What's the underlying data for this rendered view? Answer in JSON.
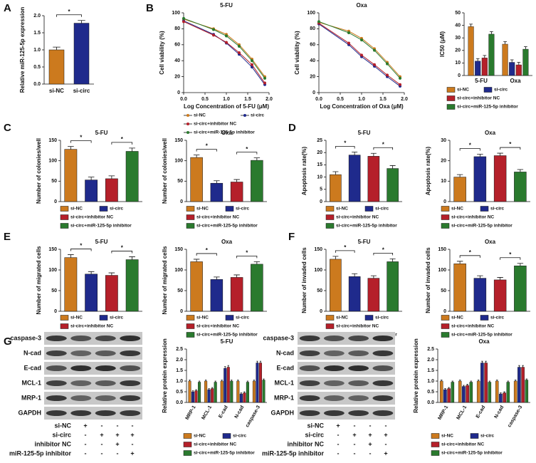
{
  "chart_data": [
    {
      "panel": "A",
      "type": "bar",
      "y_label": "Relative miR-125-5p expression",
      "categories": [
        "si-NC",
        "si-circ"
      ],
      "values": [
        1.0,
        1.78
      ],
      "errors": [
        0.08,
        0.08
      ],
      "colors": [
        "#cc7a1e",
        "#1f2a8c"
      ],
      "ylim": [
        0,
        2.0
      ],
      "yticks": [
        {
          "value": 0,
          "label": "0.0"
        },
        {
          "value": 0.5,
          "label": "0.5"
        },
        {
          "value": 1.0,
          "label": "1.0"
        },
        {
          "value": 1.5,
          "label": "1.5"
        },
        {
          "value": 2.0,
          "label": "2.0"
        }
      ],
      "significance": [
        {
          "pair": [
            0,
            1
          ],
          "label": "*"
        }
      ]
    },
    {
      "panel": "B",
      "type": "line",
      "title": "5-FU",
      "x_label": "Log Concentration of 5-FU (μM)",
      "y_label": "Cell viability (%)",
      "x": [
        0,
        0.7,
        1.0,
        1.3,
        1.6,
        1.9
      ],
      "series": [
        {
          "name": "si-NC",
          "color": "#cc7a1e",
          "values": [
            92,
            80,
            73,
            60,
            42,
            20
          ]
        },
        {
          "name": "si-circ",
          "color": "#1f2a8c",
          "values": [
            90,
            73,
            62,
            48,
            32,
            10
          ]
        },
        {
          "name": "si-circ+inhibitor NC",
          "color": "#b5202a",
          "values": [
            89,
            72,
            63,
            50,
            35,
            12
          ]
        },
        {
          "name": "si-circ+miR-125-5p inhibitor",
          "color": "#2a7a2e",
          "values": [
            93,
            79,
            71,
            58,
            40,
            18
          ]
        }
      ],
      "xlim": [
        0,
        2.0
      ],
      "xticks": [
        {
          "value": 0,
          "label": "0.0"
        },
        {
          "value": 0.5,
          "label": "0.5"
        },
        {
          "value": 1.0,
          "label": "1.0"
        },
        {
          "value": 1.5,
          "label": "1.5"
        },
        {
          "value": 2.0,
          "label": "2.0"
        }
      ],
      "ylim": [
        0,
        100
      ],
      "yticks": [
        0,
        20,
        40,
        60,
        80,
        100
      ],
      "legend": "below"
    },
    {
      "type": "line",
      "title": "Oxa",
      "x_label": "Log Concentration of Oxa (μM)",
      "y_label": "Cell viability (%)",
      "x": [
        0,
        0.7,
        1.0,
        1.3,
        1.6,
        1.9
      ],
      "series": [
        {
          "name": "si-NC",
          "color": "#cc7a1e",
          "values": [
            88,
            77,
            68,
            55,
            38,
            20
          ]
        },
        {
          "name": "si-circ",
          "color": "#1f2a8c",
          "values": [
            86,
            60,
            45,
            33,
            20,
            8
          ]
        },
        {
          "name": "si-circ+inhibitor NC",
          "color": "#b5202a",
          "values": [
            87,
            62,
            47,
            35,
            22,
            10
          ]
        },
        {
          "name": "si-circ+miR-125-5p inhibitor",
          "color": "#2a7a2e",
          "values": [
            89,
            75,
            66,
            53,
            36,
            18
          ]
        }
      ],
      "xlim": [
        0,
        2.0
      ],
      "xticks": [
        {
          "value": 0,
          "label": "0.0"
        },
        {
          "value": 0.5,
          "label": "0.5"
        },
        {
          "value": 1.0,
          "label": "1.0"
        },
        {
          "value": 1.5,
          "label": "1.5"
        },
        {
          "value": 2.0,
          "label": "2.0"
        }
      ],
      "ylim": [
        0,
        100
      ],
      "yticks": [
        0,
        20,
        40,
        60,
        80,
        100
      ]
    },
    {
      "type": "grouped_bar",
      "y_label": "IC50 (μM)",
      "categories": [
        "5-FU",
        "Oxa"
      ],
      "series": [
        {
          "name": "si-NC",
          "color": "#cc7a1e",
          "values": [
            39,
            25
          ],
          "errors": [
            2,
            2
          ]
        },
        {
          "name": "si-circ",
          "color": "#1f2a8c",
          "values": [
            11.5,
            10.5
          ],
          "errors": [
            2,
            2
          ]
        },
        {
          "name": "si-circ+inhibitor NC",
          "color": "#b5202a",
          "values": [
            14,
            8.5
          ],
          "errors": [
            2,
            2
          ]
        },
        {
          "name": "si-circ+miR-125-5p inhibitor",
          "color": "#2a7a2e",
          "values": [
            33,
            21
          ],
          "errors": [
            2,
            2
          ]
        }
      ],
      "ylim": [
        0,
        50
      ],
      "yticks": [
        0,
        10,
        20,
        30,
        40,
        50
      ],
      "legend": "below"
    },
    {
      "panel": "C",
      "type": "bar",
      "title": "5-FU",
      "y_label": "Number of colonies/well",
      "categories": [
        "si-NC",
        "si-circ",
        "si-circ+inhibitor NC",
        "si-circ+miR-125-5p inhibitor"
      ],
      "values": [
        128,
        53,
        56,
        123
      ],
      "errors": [
        7,
        7,
        7,
        8
      ],
      "colors": [
        "#cc7a1e",
        "#1f2a8c",
        "#b5202a",
        "#2a7a2e"
      ],
      "ylim": [
        0,
        150
      ],
      "yticks": [
        0,
        50,
        100,
        150
      ],
      "legend": "below",
      "significance": [
        {
          "pair": [
            0,
            1
          ],
          "label": "*"
        },
        {
          "pair": [
            2,
            3
          ],
          "label": "*"
        }
      ]
    },
    {
      "type": "bar",
      "title": "Oxa",
      "y_label": "Number of colonies/well",
      "categories": [
        "si-NC",
        "si-circ",
        "si-circ+inhibitor NC",
        "si-circ+miR-125-5p inhibitor"
      ],
      "values": [
        108,
        45,
        48,
        101
      ],
      "errors": [
        6,
        6,
        6,
        6
      ],
      "colors": [
        "#cc7a1e",
        "#1f2a8c",
        "#b5202a",
        "#2a7a2e"
      ],
      "ylim": [
        0,
        150
      ],
      "yticks": [
        0,
        50,
        100,
        150
      ],
      "legend": "below",
      "significance": [
        {
          "pair": [
            0,
            1
          ],
          "label": "*"
        },
        {
          "pair": [
            2,
            3
          ],
          "label": "*"
        }
      ]
    },
    {
      "panel": "D",
      "type": "bar",
      "title": "5-FU",
      "y_label": "Apoptosis rate(%)",
      "categories": [
        "si-NC",
        "si-circ",
        "si-circ+inhibitor NC",
        "si-circ+miR-125-5p inhibitor"
      ],
      "values": [
        11,
        19,
        18.5,
        13.5
      ],
      "errors": [
        1.2,
        1.2,
        1.2,
        1.2
      ],
      "colors": [
        "#cc7a1e",
        "#1f2a8c",
        "#b5202a",
        "#2a7a2e"
      ],
      "ylim": [
        0,
        25
      ],
      "yticks": [
        0,
        5,
        10,
        15,
        20,
        25
      ],
      "legend": "below",
      "significance": [
        {
          "pair": [
            0,
            1
          ],
          "label": "*"
        },
        {
          "pair": [
            2,
            3
          ],
          "label": "*"
        }
      ]
    },
    {
      "type": "bar",
      "title": "Oxa",
      "y_label": "Apoptosis rate(%)",
      "categories": [
        "si-NC",
        "si-circ",
        "si-circ+inhibitor NC",
        "si-circ+miR-125-5p inhibitor"
      ],
      "values": [
        12,
        22,
        22.5,
        14.5
      ],
      "errors": [
        1.2,
        1.2,
        1.2,
        1.2
      ],
      "colors": [
        "#cc7a1e",
        "#1f2a8c",
        "#b5202a",
        "#2a7a2e"
      ],
      "ylim": [
        0,
        30
      ],
      "yticks": [
        0,
        10,
        20,
        30
      ],
      "legend": "below",
      "significance": [
        {
          "pair": [
            0,
            1
          ],
          "label": "*"
        },
        {
          "pair": [
            2,
            3
          ],
          "label": "*"
        }
      ]
    },
    {
      "panel": "E",
      "type": "bar",
      "title": "5-FU",
      "y_label": "Number of migrated cells",
      "categories": [
        "si-NC",
        "si-circ",
        "si-circ+inhibitor NC",
        "si-circ+miR-125-5p inhibitor"
      ],
      "values": [
        130,
        90,
        87,
        125
      ],
      "errors": [
        7,
        6,
        6,
        7
      ],
      "colors": [
        "#cc7a1e",
        "#1f2a8c",
        "#b5202a",
        "#2a7a2e"
      ],
      "ylim": [
        0,
        150
      ],
      "yticks": [
        0,
        50,
        100,
        150
      ],
      "legend": "below",
      "significance": [
        {
          "pair": [
            0,
            1
          ],
          "label": "*"
        },
        {
          "pair": [
            2,
            3
          ],
          "label": "*"
        }
      ]
    },
    {
      "type": "bar",
      "title": "Oxa",
      "y_label": "Number of migrated cells",
      "categories": [
        "si-NC",
        "si-circ",
        "si-circ+inhibitor NC",
        "si-circ+miR-125-5p inhibitor"
      ],
      "values": [
        120,
        77,
        82,
        114
      ],
      "errors": [
        6,
        6,
        6,
        6
      ],
      "colors": [
        "#cc7a1e",
        "#1f2a8c",
        "#b5202a",
        "#2a7a2e"
      ],
      "ylim": [
        0,
        150
      ],
      "yticks": [
        0,
        50,
        100,
        150
      ],
      "legend": "below",
      "significance": [
        {
          "pair": [
            0,
            1
          ],
          "label": "*"
        },
        {
          "pair": [
            2,
            3
          ],
          "label": "*"
        }
      ]
    },
    {
      "panel": "F",
      "type": "bar",
      "title": "5-FU",
      "y_label": "Number of invaded cells",
      "categories": [
        "si-NC",
        "si-circ",
        "si-circ+inhibitor NC",
        "si-circ+miR-125-5p inhibitor"
      ],
      "values": [
        126,
        84,
        80,
        120
      ],
      "errors": [
        7,
        7,
        6,
        7
      ],
      "colors": [
        "#cc7a1e",
        "#1f2a8c",
        "#b5202a",
        "#2a7a2e"
      ],
      "ylim": [
        0,
        150
      ],
      "yticks": [
        0,
        50,
        100,
        150
      ],
      "legend": "below",
      "significance": [
        {
          "pair": [
            0,
            1
          ],
          "label": "*"
        },
        {
          "pair": [
            2,
            3
          ],
          "label": "*"
        }
      ]
    },
    {
      "type": "bar",
      "title": "Oxa",
      "y_label": "Number of invaded cells",
      "categories": [
        "si-NC",
        "si-circ",
        "si-circ+inhibitor NC",
        "si-circ+miR-125-5p inhibitor"
      ],
      "values": [
        115,
        80,
        76,
        110
      ],
      "errors": [
        6,
        6,
        6,
        6
      ],
      "colors": [
        "#cc7a1e",
        "#1f2a8c",
        "#b5202a",
        "#2a7a2e"
      ],
      "ylim": [
        0,
        150
      ],
      "yticks": [
        0,
        50,
        100,
        150
      ],
      "legend": "below",
      "significance": [
        {
          "pair": [
            0,
            1
          ],
          "label": "*"
        },
        {
          "pair": [
            2,
            3
          ],
          "label": "*"
        }
      ]
    },
    {
      "panel": "G",
      "type": "grouped_bar",
      "title": "5-FU",
      "y_label": "Relative protein expression",
      "categories": [
        "MRP-1",
        "MCL-1",
        "E-cad",
        "N-cad",
        "caspase-3"
      ],
      "series": [
        {
          "name": "si-NC",
          "color": "#cc7a1e",
          "values": [
            1.0,
            1.0,
            1.0,
            1.0,
            1.0
          ],
          "errors": [
            0.05,
            0.05,
            0.05,
            0.05,
            0.05
          ]
        },
        {
          "name": "si-circ",
          "color": "#1f2a8c",
          "values": [
            0.5,
            0.6,
            1.6,
            0.4,
            1.85
          ],
          "errors": [
            0.05,
            0.05,
            0.08,
            0.05,
            0.08
          ]
        },
        {
          "name": "si-circ+inhibitor NC",
          "color": "#b5202a",
          "values": [
            0.55,
            0.65,
            1.65,
            0.45,
            1.85
          ],
          "errors": [
            0.05,
            0.05,
            0.08,
            0.05,
            0.08
          ]
        },
        {
          "name": "si-circ+miR-125-5p inhibitor",
          "color": "#2a7a2e",
          "values": [
            0.95,
            0.95,
            1.0,
            0.95,
            1.05
          ],
          "errors": [
            0.05,
            0.05,
            0.05,
            0.05,
            0.05
          ]
        }
      ],
      "ylim": [
        0,
        2.5
      ],
      "yticks": [
        {
          "value": 0,
          "label": "0.0"
        },
        {
          "value": 0.5,
          "label": "0.5"
        },
        {
          "value": 1.0,
          "label": "1.0"
        },
        {
          "value": 1.5,
          "label": "1.5"
        },
        {
          "value": 2.0,
          "label": "2.0"
        },
        {
          "value": 2.5,
          "label": "2.5"
        }
      ],
      "legend": "below"
    },
    {
      "type": "grouped_bar",
      "title": "Oxa",
      "y_label": "Relative protein expression",
      "categories": [
        "MRP-1",
        "MCL-1",
        "E-cad",
        "N-cad",
        "caspase-3"
      ],
      "series": [
        {
          "name": "si-NC",
          "color": "#cc7a1e",
          "values": [
            1.0,
            1.0,
            1.0,
            1.0,
            1.0
          ],
          "errors": [
            0.05,
            0.05,
            0.05,
            0.05,
            0.05
          ]
        },
        {
          "name": "si-circ",
          "color": "#1f2a8c",
          "values": [
            0.6,
            0.75,
            1.85,
            0.4,
            1.65
          ],
          "errors": [
            0.05,
            0.05,
            0.08,
            0.05,
            0.08
          ]
        },
        {
          "name": "si-circ+inhibitor NC",
          "color": "#b5202a",
          "values": [
            0.65,
            0.8,
            1.85,
            0.45,
            1.65
          ],
          "errors": [
            0.05,
            0.05,
            0.08,
            0.05,
            0.08
          ]
        },
        {
          "name": "si-circ+miR-125-5p inhibitor",
          "color": "#2a7a2e",
          "values": [
            0.95,
            0.95,
            0.95,
            0.95,
            1.05
          ],
          "errors": [
            0.05,
            0.05,
            0.05,
            0.05,
            0.05
          ]
        }
      ],
      "ylim": [
        0,
        2.5
      ],
      "yticks": [
        {
          "value": 0,
          "label": "0.0"
        },
        {
          "value": 0.5,
          "label": "0.5"
        },
        {
          "value": 1.0,
          "label": "1.0"
        },
        {
          "value": 1.5,
          "label": "1.5"
        },
        {
          "value": 2.0,
          "label": "2.0"
        },
        {
          "value": 2.5,
          "label": "2.5"
        }
      ],
      "legend": "below"
    }
  ],
  "blots": [
    {
      "proteins": [
        "caspase-3",
        "N-cad",
        "E-cad",
        "MCL-1",
        "MRP-1",
        "GAPDH"
      ],
      "conditions": [
        {
          "name": "si-NC",
          "marks": [
            "+",
            "-",
            "-",
            "-"
          ]
        },
        {
          "name": "si-circ",
          "marks": [
            "-",
            "+",
            "+",
            "+"
          ]
        },
        {
          "name": "inhibitor NC",
          "marks": [
            "-",
            "-",
            "+",
            "-"
          ]
        },
        {
          "name": "miR-125-5p inhibitor",
          "marks": [
            "-",
            "-",
            "-",
            "+"
          ]
        }
      ]
    },
    {
      "proteins": [
        "caspase-3",
        "N-cad",
        "E-cad",
        "MCL-1",
        "MRP-1",
        "GAPDH"
      ],
      "conditions": [
        {
          "name": "si-NC",
          "marks": [
            "+",
            "-",
            "-",
            "-"
          ]
        },
        {
          "name": "si-circ",
          "marks": [
            "-",
            "+",
            "+",
            "+"
          ]
        },
        {
          "name": "inhibitor NC",
          "marks": [
            "-",
            "-",
            "+",
            "-"
          ]
        },
        {
          "name": "miR-125-5p inhibitor",
          "marks": [
            "-",
            "-",
            "-",
            "+"
          ]
        }
      ]
    }
  ]
}
